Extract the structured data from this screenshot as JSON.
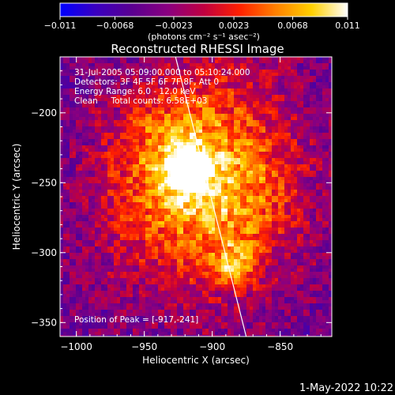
{
  "colorbar": {
    "tick_labels": [
      "−0.011",
      "−0.0068",
      "−0.0023",
      "0.0023",
      "0.0068",
      "0.011"
    ],
    "tick_values": [
      -0.011,
      -0.0068,
      -0.0023,
      0.0023,
      0.0068,
      0.011
    ],
    "range": [
      -0.011,
      0.011
    ],
    "unit_label": "(photons cm⁻² s⁻¹ asec⁻²)",
    "colormap": [
      "#0000ff",
      "#3a00c0",
      "#5a0090",
      "#8a0080",
      "#c00040",
      "#ff2000",
      "#ff8000",
      "#ffd000",
      "#ffffff"
    ]
  },
  "chart_data": {
    "type": "heatmap",
    "title": "Reconstructed RHESSI Image",
    "xlabel": "Heliocentric X (arcsec)",
    "ylabel": "Heliocentric Y (arcsec)",
    "xlim": [
      -1012,
      -812
    ],
    "ylim": [
      -360,
      -160
    ],
    "x_ticks": [
      -1000,
      -950,
      -900,
      -850
    ],
    "x_tick_labels": [
      "−1000",
      "−950",
      "−900",
      "−850"
    ],
    "y_ticks": [
      -200,
      -250,
      -300,
      -350
    ],
    "y_tick_labels": [
      "−200",
      "−250",
      "−300",
      "−350"
    ],
    "annotations": [
      "31-Jul-2005 05:09:00.000 to 05:10:24.000",
      "Detectors: 3F 4F 5F 6F 7F 8F, Att 0",
      "Energy Range: 6.0 - 12.0 keV",
      "Clean     Total counts: 6.58E+03"
    ],
    "peak_label": "Position of Peak = [-917,-241]",
    "peak": [
      -917,
      -241
    ],
    "limb_line": [
      [
        -927,
        -160
      ],
      [
        -875,
        -360
      ]
    ],
    "sources": [
      {
        "x": -917,
        "y": -241,
        "value": 0.011
      },
      {
        "x": -885,
        "y": -310,
        "value": 0.0075
      },
      {
        "x": -930,
        "y": -218,
        "value": 0.0045
      },
      {
        "x": -900,
        "y": -275,
        "value": 0.003
      },
      {
        "x": -870,
        "y": -255,
        "value": 0.0028
      },
      {
        "x": -945,
        "y": -270,
        "value": 0.0022
      },
      {
        "x": -880,
        "y": -195,
        "value": 0.002
      }
    ]
  },
  "timestamp": "1-May-2022 10:22"
}
